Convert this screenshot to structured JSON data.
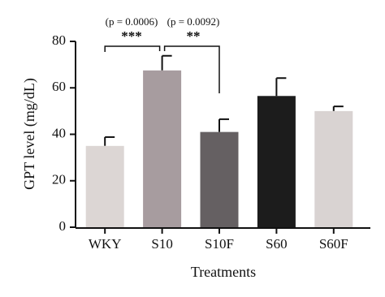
{
  "chart_data": {
    "type": "bar",
    "categories": [
      "WKY",
      "S10",
      "S10F",
      "S60",
      "S60F"
    ],
    "values": [
      35,
      67.5,
      41,
      56.5,
      50
    ],
    "errors": [
      3.8,
      6.3,
      5.5,
      7.7,
      2
    ],
    "colors": [
      "#dcd6d4",
      "#a79c9f",
      "#656062",
      "#1c1c1c",
      "#d9d3d2"
    ],
    "xlabel": "Treatments",
    "ylabel": "GPT level (mg/dL)",
    "ylim": [
      0,
      80
    ],
    "yticks": [
      0,
      20,
      40,
      60,
      80
    ],
    "annotations": [
      "(p = 0.0006)",
      "***",
      "(p = 0.0092)",
      "**"
    ]
  }
}
